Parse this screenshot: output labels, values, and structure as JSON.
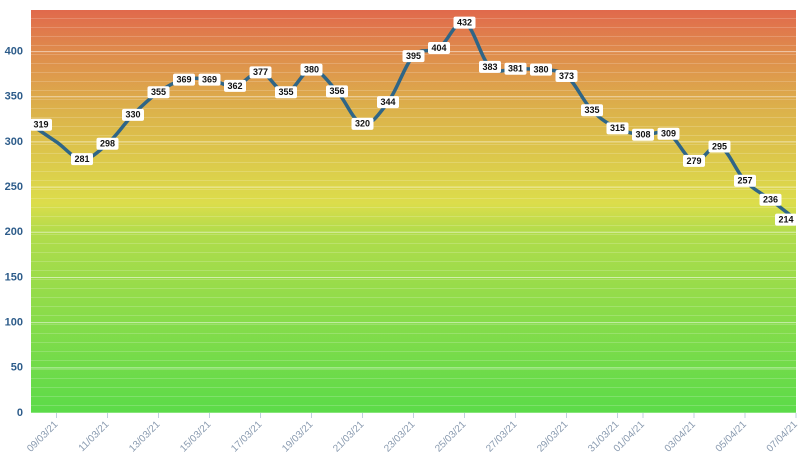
{
  "chart_data": {
    "type": "line",
    "categories": [
      null,
      "09/03/21",
      null,
      "11/03/21",
      null,
      "13/03/21",
      null,
      "15/03/21",
      null,
      "17/03/21",
      null,
      "19/03/21",
      null,
      "21/03/21",
      null,
      "23/03/21",
      null,
      "25/03/21",
      null,
      "27/03/21",
      null,
      "29/03/21",
      null,
      "31/03/21",
      "01/04/21",
      null,
      "03/04/21",
      null,
      "05/04/21",
      null,
      "07/04/21"
    ],
    "series": [
      {
        "name": null,
        "color": "#2f6586",
        "values": [
          319,
          300,
          281,
          298,
          330,
          355,
          369,
          369,
          362,
          377,
          355,
          380,
          356,
          320,
          344,
          395,
          404,
          432,
          383,
          381,
          380,
          373,
          335,
          315,
          308,
          309,
          279,
          295,
          257,
          236,
          214
        ],
        "value_labels": [
          "319",
          null,
          "281",
          "298",
          "330",
          "355",
          "369",
          "369",
          "362",
          "377",
          "355",
          "380",
          "356",
          "320",
          "344",
          "395",
          "404",
          "432",
          "383",
          "381",
          "380",
          "373",
          "335",
          "315",
          "308",
          "309",
          "279",
          "295",
          "257",
          "236",
          "214"
        ]
      }
    ],
    "ylim": [
      0,
      446
    ],
    "yticks": [
      0,
      50,
      100,
      150,
      200,
      250,
      300,
      350,
      400
    ],
    "grid": true
  }
}
